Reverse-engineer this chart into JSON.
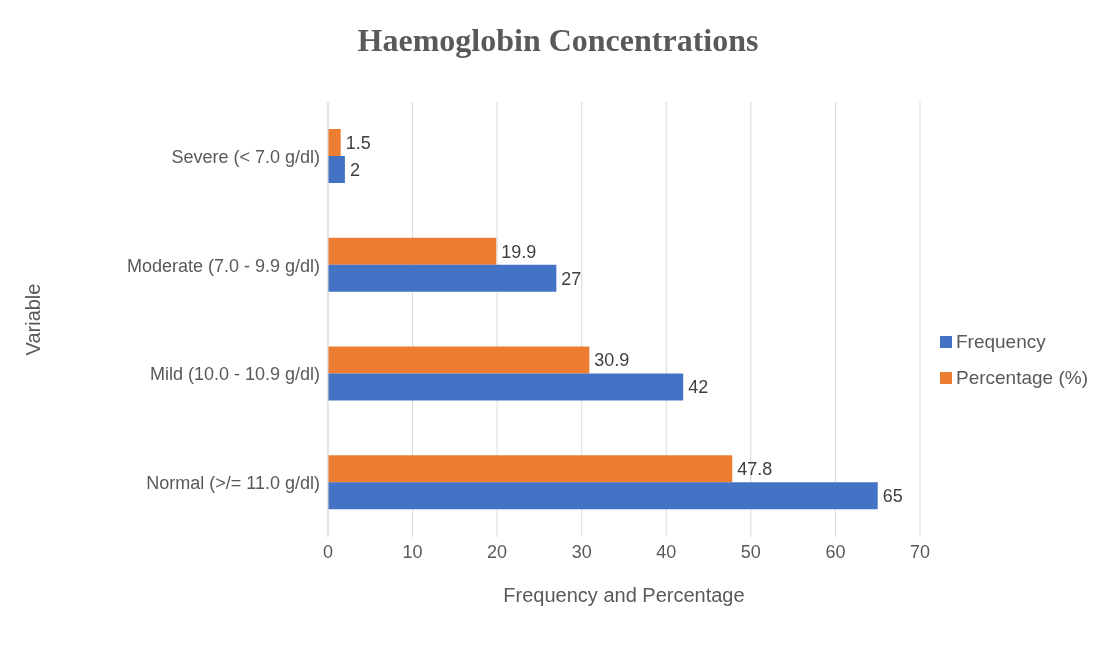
{
  "chart_data": {
    "type": "bar",
    "orientation": "horizontal",
    "title": "Haemoglobin Concentrations",
    "xlabel": "Frequency and Percentage",
    "ylabel": "Variable",
    "categories": [
      "Severe (< 7.0 g/dl)",
      "Moderate (7.0 - 9.9 g/dl)",
      "Mild (10.0 - 10.9 g/dl)",
      "Normal (>/= 11.0 g/dl)"
    ],
    "series": [
      {
        "name": "Percentage (%)",
        "color": "#ed7d31",
        "values": [
          1.5,
          19.9,
          30.9,
          47.8
        ]
      },
      {
        "name": "Frequency",
        "color": "#4472c4",
        "values": [
          2,
          27,
          42,
          65
        ]
      }
    ],
    "xlim": [
      0,
      70
    ],
    "xticks": [
      0,
      10,
      20,
      30,
      40,
      50,
      60,
      70
    ],
    "grid": "x",
    "legend": "right",
    "data_labels": true
  }
}
